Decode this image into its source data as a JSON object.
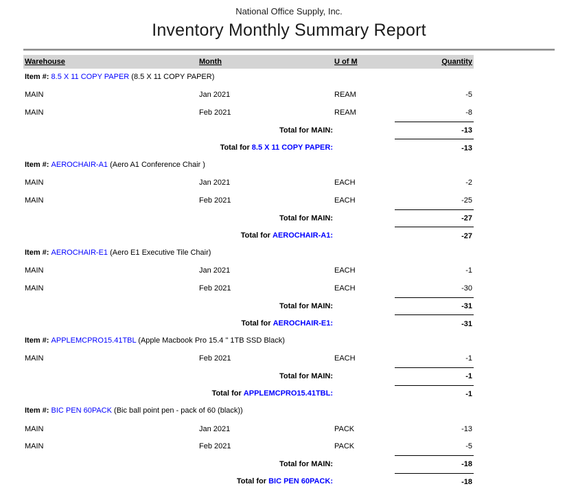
{
  "report": {
    "company": "National Office Supply, Inc.",
    "title": "Inventory Monthly Summary Report"
  },
  "labels": {
    "item_prefix": "Item #:",
    "total_prefix": "Total for"
  },
  "table": {
    "columns": [
      "Warehouse",
      "Month",
      "U of M",
      "Quantity"
    ]
  },
  "colors": {
    "link_blue": "#0000ff",
    "header_bg": "#d4d4d4"
  },
  "items": [
    {
      "number": "8.5 X 11 COPY PAPER",
      "description": "(8.5 X 11 COPY PAPER)",
      "rows": [
        {
          "warehouse": "MAIN",
          "month": "Jan 2021",
          "uom": "REAM",
          "quantity": "-5"
        },
        {
          "warehouse": "MAIN",
          "month": "Feb 2021",
          "uom": "REAM",
          "quantity": "-8"
        }
      ],
      "warehouse_totals": [
        {
          "warehouse": "MAIN",
          "quantity": "-13"
        }
      ],
      "item_total": "-13"
    },
    {
      "number": "AEROCHAIR-A1",
      "description": "(Aero A1 Conference Chair )",
      "rows": [
        {
          "warehouse": "MAIN",
          "month": "Jan 2021",
          "uom": "EACH",
          "quantity": "-2"
        },
        {
          "warehouse": "MAIN",
          "month": "Feb 2021",
          "uom": "EACH",
          "quantity": "-25"
        }
      ],
      "warehouse_totals": [
        {
          "warehouse": "MAIN",
          "quantity": "-27"
        }
      ],
      "item_total": "-27"
    },
    {
      "number": "AEROCHAIR-E1",
      "description": "(Aero E1 Executive Tile Chair)",
      "rows": [
        {
          "warehouse": "MAIN",
          "month": "Jan 2021",
          "uom": "EACH",
          "quantity": "-1"
        },
        {
          "warehouse": "MAIN",
          "month": "Feb 2021",
          "uom": "EACH",
          "quantity": "-30"
        }
      ],
      "warehouse_totals": [
        {
          "warehouse": "MAIN",
          "quantity": "-31"
        }
      ],
      "item_total": "-31"
    },
    {
      "number": "APPLEMCPRO15.41TBL",
      "description": "(Apple Macbook Pro 15.4 \" 1TB SSD Black)",
      "rows": [
        {
          "warehouse": "MAIN",
          "month": "Feb 2021",
          "uom": "EACH",
          "quantity": "-1"
        }
      ],
      "warehouse_totals": [
        {
          "warehouse": "MAIN",
          "quantity": "-1"
        }
      ],
      "item_total": "-1"
    },
    {
      "number": "BIC PEN 60PACK",
      "description": "(Bic ball point pen - pack of 60 (black))",
      "rows": [
        {
          "warehouse": "MAIN",
          "month": "Jan 2021",
          "uom": "PACK",
          "quantity": "-13"
        },
        {
          "warehouse": "MAIN",
          "month": "Feb 2021",
          "uom": "PACK",
          "quantity": "-5"
        }
      ],
      "warehouse_totals": [
        {
          "warehouse": "MAIN",
          "quantity": "-18"
        }
      ],
      "item_total": "-18"
    }
  ]
}
